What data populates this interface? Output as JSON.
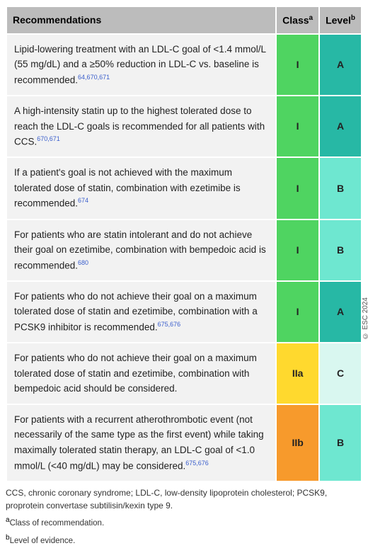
{
  "header": {
    "col_rec": "Recommendations",
    "col_class": "Class",
    "col_class_sup": "a",
    "col_level": "Level",
    "col_level_sup": "b",
    "header_bg": "#bcbcbc"
  },
  "colors": {
    "class_I": "#4fd461",
    "class_IIa": "#ffd92e",
    "class_IIb": "#f79a2c",
    "level_A": "#27b8a5",
    "level_B": "#6ee7d0",
    "level_C": "#d9f7f0",
    "rec_bg": "#f2f2f2"
  },
  "rows": [
    {
      "text": "Lipid-lowering treatment with an LDL-C goal of <1.4 mmol/L (55 mg/dL) and a ≥50% reduction in LDL-C vs. baseline is recommended.",
      "refs": "64,670,671",
      "class": "I",
      "class_color": "class_I",
      "level": "A",
      "level_color": "level_A"
    },
    {
      "text": "A high-intensity statin up to the highest tolerated dose to reach the LDL-C goals is recommended for all patients with CCS.",
      "refs": "670,671",
      "class": "I",
      "class_color": "class_I",
      "level": "A",
      "level_color": "level_A"
    },
    {
      "text": "If a patient's goal is not achieved with the maximum tolerated dose of statin, combination with ezetimibe is recommended.",
      "refs": "674",
      "class": "I",
      "class_color": "class_I",
      "level": "B",
      "level_color": "level_B"
    },
    {
      "text": "For patients who are statin intolerant and do not achieve their goal on ezetimibe, combination with bempedoic acid is recommended.",
      "refs": "680",
      "class": "I",
      "class_color": "class_I",
      "level": "B",
      "level_color": "level_B"
    },
    {
      "text": "For patients who do not achieve their goal on a maximum tolerated dose of statin and ezetimibe, combination with a PCSK9 inhibitor is recommended.",
      "refs": "675,676",
      "class": "I",
      "class_color": "class_I",
      "level": "A",
      "level_color": "level_A"
    },
    {
      "text": "For patients who do not achieve their goal on a maximum tolerated dose of statin and ezetimibe, combination with bempedoic acid should be considered.",
      "refs": "",
      "class": "IIa",
      "class_color": "class_IIa",
      "level": "C",
      "level_color": "level_C"
    },
    {
      "text": "For patients with a recurrent atherothrombotic event (not necessarily of the same type as the first event) while taking maximally tolerated statin therapy, an LDL-C goal of <1.0 mmol/L (<40 mg/dL) may be considered.",
      "refs": "675,676",
      "class": "IIb",
      "class_color": "class_IIb",
      "level": "B",
      "level_color": "level_B"
    }
  ],
  "footnotes": {
    "abbr": "CCS, chronic coronary syndrome; LDL-C, low-density lipoprotein cholesterol; PCSK9, proprotein convertase subtilisin/kexin type 9.",
    "a": "Class of recommendation.",
    "b": "Level of evidence."
  },
  "copyright": "© ESC 2024"
}
